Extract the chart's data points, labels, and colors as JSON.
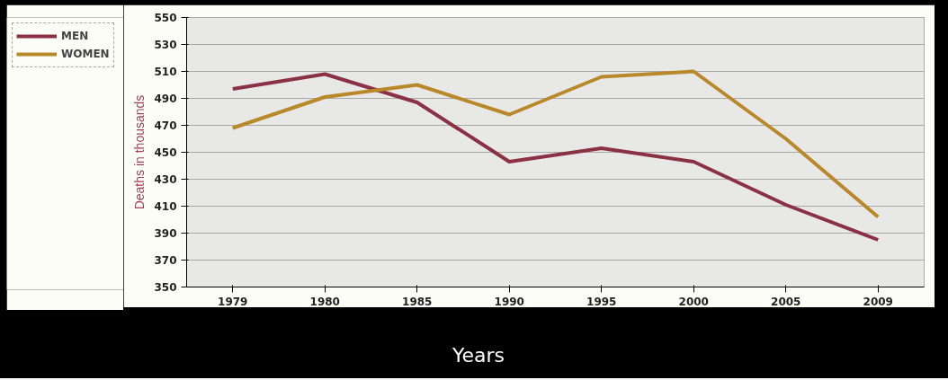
{
  "chart_data": {
    "type": "line",
    "categories": [
      "1979",
      "1980",
      "1985",
      "1990",
      "1995",
      "2000",
      "2005",
      "2009"
    ],
    "series": [
      {
        "name": "MEN",
        "color": "#8b3145",
        "values": [
          497,
          508,
          487,
          443,
          453,
          443,
          411,
          385
        ]
      },
      {
        "name": "WOMEN",
        "color": "#b8882a",
        "values": [
          468,
          491,
          500,
          478,
          506,
          510,
          460,
          402
        ]
      }
    ],
    "xlabel": "Years",
    "ylabel": "Deaths in thousands",
    "ylim": [
      350,
      550
    ],
    "yticks": [
      350,
      370,
      390,
      410,
      430,
      450,
      470,
      490,
      510,
      530,
      550
    ],
    "grid": "y",
    "legend": "top left",
    "marker": "none",
    "line_style": "solid"
  }
}
